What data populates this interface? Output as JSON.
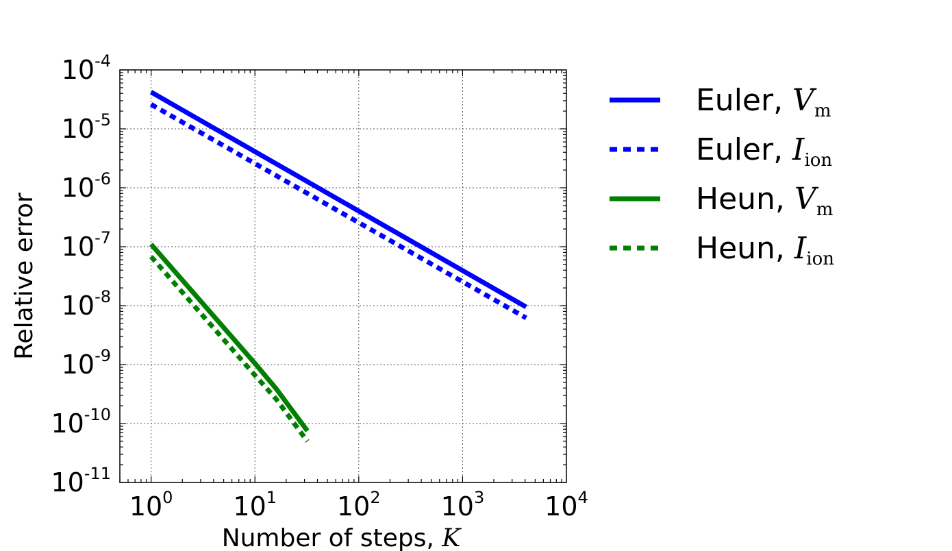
{
  "chart_data": {
    "type": "line",
    "xscale": "log",
    "yscale": "log",
    "xlim": [
      0.5,
      10000
    ],
    "ylim": [
      1e-11,
      0.0001
    ],
    "grid": true,
    "legend_placement": "outside-right",
    "xlabel": {
      "text": "Number of steps, ",
      "math": "K"
    },
    "ylabel": "Relative error",
    "xticks": [
      {
        "value": 1,
        "base": "10",
        "exp": "0"
      },
      {
        "value": 10,
        "base": "10",
        "exp": "1"
      },
      {
        "value": 100,
        "base": "10",
        "exp": "2"
      },
      {
        "value": 1000,
        "base": "10",
        "exp": "3"
      },
      {
        "value": 10000,
        "base": "10",
        "exp": "4"
      }
    ],
    "yticks": [
      {
        "value": 0.0001,
        "base": "10",
        "exp": "-4"
      },
      {
        "value": 1e-05,
        "base": "10",
        "exp": "-5"
      },
      {
        "value": 1e-06,
        "base": "10",
        "exp": "-6"
      },
      {
        "value": 1e-07,
        "base": "10",
        "exp": "-7"
      },
      {
        "value": 1e-08,
        "base": "10",
        "exp": "-8"
      },
      {
        "value": 1e-09,
        "base": "10",
        "exp": "-9"
      },
      {
        "value": 1e-10,
        "base": "10",
        "exp": "-10"
      },
      {
        "value": 1e-11,
        "base": "10",
        "exp": "-11"
      }
    ],
    "series": [
      {
        "name": "Euler, ",
        "math": "V",
        "sub": "m",
        "color": "#0000ff",
        "style": "solid",
        "x": [
          1,
          4096
        ],
        "y": [
          4.2e-05,
          9.5e-09
        ]
      },
      {
        "name": "Euler, ",
        "math": "I",
        "sub": "ion",
        "color": "#0000ff",
        "style": "dotted",
        "x": [
          1,
          4096
        ],
        "y": [
          2.6e-05,
          6.2e-09
        ]
      },
      {
        "name": "Heun, ",
        "math": "V",
        "sub": "m",
        "color": "#007f00",
        "style": "solid",
        "x": [
          1,
          10,
          16,
          32
        ],
        "y": [
          1.1e-07,
          1.05e-09,
          3.9e-10,
          7.5e-11
        ]
      },
      {
        "name": "Heun, ",
        "math": "I",
        "sub": "ion",
        "color": "#007f00",
        "style": "dotted",
        "x": [
          1,
          10,
          16,
          32
        ],
        "y": [
          6.8e-08,
          6.6e-10,
          2.6e-10,
          5e-11
        ]
      }
    ]
  }
}
